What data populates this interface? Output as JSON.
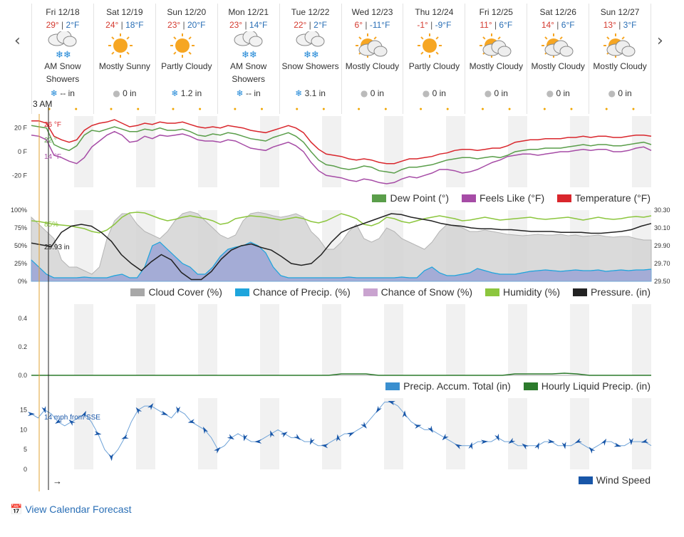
{
  "nav": {
    "prev": "‹",
    "next": "›"
  },
  "days": [
    {
      "name": "Fri 12/18",
      "hi": "29°",
      "lo": "2°F",
      "icon": "snow-cloud-icon",
      "cond": "AM Snow Showers",
      "ptype": "snow",
      "precip": "-- in"
    },
    {
      "name": "Sat 12/19",
      "hi": "24°",
      "lo": "18°F",
      "icon": "sun-icon",
      "cond": "Mostly Sunny",
      "ptype": "rain",
      "precip": "0 in"
    },
    {
      "name": "Sun 12/20",
      "hi": "23°",
      "lo": "20°F",
      "icon": "sun-icon",
      "cond": "Partly Cloudy",
      "ptype": "snow",
      "precip": "1.2 in"
    },
    {
      "name": "Mon 12/21",
      "hi": "23°",
      "lo": "14°F",
      "icon": "snow-cloud-icon",
      "cond": "AM Snow Showers",
      "ptype": "snow",
      "precip": "-- in"
    },
    {
      "name": "Tue 12/22",
      "hi": "22°",
      "lo": "2°F",
      "icon": "snow-cloud-icon",
      "cond": "Snow Showers",
      "ptype": "snow",
      "precip": "3.1 in"
    },
    {
      "name": "Wed 12/23",
      "hi": "6°",
      "lo": "-11°F",
      "icon": "partly-cloudy-icon",
      "cond": "Mostly Cloudy",
      "ptype": "rain",
      "precip": "0 in"
    },
    {
      "name": "Thu 12/24",
      "hi": "-1°",
      "lo": "-9°F",
      "icon": "sun-icon",
      "cond": "Partly Cloudy",
      "ptype": "rain",
      "precip": "0 in"
    },
    {
      "name": "Fri 12/25",
      "hi": "11°",
      "lo": "6°F",
      "icon": "partly-cloudy-icon",
      "cond": "Mostly Cloudy",
      "ptype": "rain",
      "precip": "0 in"
    },
    {
      "name": "Sat 12/26",
      "hi": "14°",
      "lo": "6°F",
      "icon": "partly-cloudy-icon",
      "cond": "Mostly Cloudy",
      "ptype": "rain",
      "precip": "0 in"
    },
    {
      "name": "Sun 12/27",
      "hi": "13°",
      "lo": "3°F",
      "icon": "partly-cloudy-icon",
      "cond": "Mostly Cloudy",
      "ptype": "rain",
      "precip": "0 in"
    }
  ],
  "cursor": {
    "time": "3 AM",
    "temp": "26 °F",
    "dew": "22 °",
    "feels": "14 °F",
    "humidity": "85%",
    "pressure": "29.93 in",
    "wind": "14 mph from SSE",
    "arrow": "→"
  },
  "colors": {
    "temperature": "#d9262c",
    "feels": "#a64ca6",
    "dew": "#5a9e4a",
    "cloud": "#a8a8a8",
    "precip": "#1ea5dc",
    "snow": "#9fa8d6",
    "humidity": "#8cc63e",
    "pressure": "#222222",
    "accum": "#3a8fcf",
    "hourly": "#2c7a2c",
    "wind": "#1856a8",
    "accent": "#2a6fb6"
  },
  "chart_data": [
    {
      "type": "line",
      "yticks": [
        "20 F",
        "0 F",
        "-20 F"
      ],
      "ylim": [
        -30,
        30
      ],
      "series": [
        {
          "name": "Dew Point (°)",
          "color_key": "dew",
          "values": [
            22,
            21,
            20,
            6,
            3,
            1,
            5,
            14,
            18,
            17,
            19,
            21,
            19,
            17,
            17,
            19,
            18,
            20,
            18,
            18,
            19,
            17,
            14,
            13,
            15,
            14,
            16,
            15,
            13,
            11,
            10,
            9,
            12,
            14,
            16,
            13,
            8,
            0,
            -7,
            -11,
            -12,
            -14,
            -15,
            -14,
            -12,
            -13,
            -16,
            -17,
            -18,
            -15,
            -13,
            -13,
            -12,
            -11,
            -9,
            -7,
            -6,
            -5,
            -5,
            -6,
            -5,
            -4,
            -5,
            -3,
            0,
            1,
            2,
            2,
            3,
            3,
            3,
            4,
            5,
            6,
            5,
            6,
            6,
            5,
            5,
            6,
            7,
            8,
            6
          ]
        },
        {
          "name": "Feels Like (°F)",
          "color_key": "feels",
          "values": [
            14,
            13,
            10,
            -3,
            -5,
            -8,
            -10,
            -5,
            4,
            9,
            14,
            17,
            14,
            8,
            9,
            13,
            11,
            14,
            13,
            14,
            15,
            13,
            10,
            9,
            9,
            8,
            10,
            9,
            6,
            3,
            2,
            1,
            4,
            6,
            8,
            5,
            0,
            -9,
            -16,
            -20,
            -21,
            -22,
            -24,
            -25,
            -23,
            -24,
            -26,
            -27,
            -26,
            -23,
            -21,
            -22,
            -20,
            -18,
            -15,
            -15,
            -16,
            -18,
            -17,
            -15,
            -12,
            -9,
            -7,
            -4,
            -3,
            -2,
            -2,
            -3,
            -2,
            -1,
            0,
            0,
            1,
            2,
            1,
            2,
            2,
            0,
            0,
            1,
            3,
            4,
            1
          ]
        },
        {
          "name": "Temperature (°F)",
          "color_key": "temperature",
          "values": [
            26,
            26,
            24,
            13,
            10,
            8,
            10,
            18,
            22,
            24,
            25,
            27,
            24,
            21,
            22,
            24,
            23,
            25,
            24,
            24,
            25,
            23,
            21,
            20,
            21,
            20,
            22,
            21,
            20,
            18,
            17,
            16,
            18,
            20,
            22,
            20,
            16,
            8,
            2,
            -2,
            -3,
            -4,
            -6,
            -7,
            -6,
            -7,
            -9,
            -10,
            -10,
            -8,
            -6,
            -6,
            -5,
            -4,
            -2,
            -1,
            1,
            2,
            2,
            1,
            2,
            3,
            3,
            5,
            8,
            9,
            10,
            10,
            11,
            11,
            11,
            12,
            12,
            13,
            12,
            13,
            13,
            12,
            12,
            13,
            14,
            14,
            13
          ]
        }
      ]
    },
    {
      "type": "area",
      "ylabels_left": [
        "100%",
        "75%",
        "50%",
        "25%",
        "0%"
      ],
      "ylabels_right": [
        "30.30",
        "30.10",
        "29.90",
        "29.70",
        "29.50"
      ],
      "ylim": [
        0,
        100
      ],
      "series": [
        {
          "name": "Cloud Cover (%)",
          "color_key": "cloud",
          "values": [
            90,
            80,
            70,
            60,
            30,
            20,
            20,
            15,
            10,
            20,
            60,
            85,
            95,
            95,
            80,
            70,
            65,
            60,
            70,
            85,
            95,
            98,
            95,
            85,
            75,
            65,
            60,
            65,
            85,
            95,
            97,
            95,
            92,
            90,
            92,
            95,
            90,
            70,
            60,
            45,
            45,
            55,
            70,
            80,
            60,
            55,
            60,
            75,
            70,
            60,
            55,
            50,
            45,
            55,
            70,
            80,
            78,
            75,
            70,
            70,
            72,
            70,
            68,
            66,
            65,
            64,
            65,
            66,
            65,
            65,
            66,
            64,
            65,
            63,
            64,
            65,
            63,
            62,
            63,
            63,
            60,
            58,
            58
          ]
        },
        {
          "name": "Chance of Precip. (%)",
          "color_key": "precip",
          "values": [
            30,
            20,
            10,
            5,
            5,
            5,
            5,
            6,
            5,
            5,
            5,
            8,
            10,
            5,
            5,
            20,
            50,
            55,
            45,
            35,
            25,
            20,
            10,
            10,
            20,
            35,
            45,
            48,
            50,
            55,
            50,
            40,
            20,
            8,
            5,
            5,
            5,
            5,
            5,
            5,
            5,
            5,
            6,
            5,
            5,
            5,
            5,
            5,
            5,
            6,
            5,
            5,
            15,
            20,
            12,
            8,
            8,
            10,
            12,
            18,
            15,
            12,
            10,
            10,
            10,
            12,
            14,
            15,
            16,
            15,
            14,
            15,
            16,
            15,
            15,
            16,
            14,
            15,
            16,
            15,
            16,
            16,
            17
          ]
        },
        {
          "name": "Chance of Snow (%)",
          "color_key": "snow",
          "values": [
            30,
            20,
            10,
            5,
            5,
            5,
            5,
            6,
            5,
            5,
            5,
            8,
            10,
            5,
            5,
            20,
            50,
            55,
            45,
            35,
            25,
            20,
            10,
            10,
            20,
            35,
            45,
            48,
            50,
            55,
            50,
            40,
            20,
            8,
            5,
            5,
            5,
            5,
            5,
            5,
            5,
            5,
            6,
            5,
            5,
            5,
            5,
            5,
            5,
            6,
            5,
            5,
            15,
            20,
            12,
            8,
            8,
            10,
            12,
            18,
            15,
            12,
            10,
            10,
            10,
            12,
            14,
            15,
            16,
            15,
            14,
            15,
            16,
            15,
            15,
            16,
            14,
            15,
            16,
            15,
            16,
            16,
            17
          ]
        },
        {
          "name": "Humidity (%)",
          "color_key": "humidity",
          "values": [
            85,
            84,
            82,
            80,
            79,
            78,
            76,
            74,
            70,
            68,
            72,
            80,
            90,
            96,
            97,
            96,
            92,
            88,
            85,
            87,
            90,
            92,
            90,
            88,
            85,
            80,
            82,
            88,
            90,
            92,
            91,
            90,
            88,
            86,
            88,
            90,
            88,
            84,
            82,
            85,
            90,
            95,
            92,
            88,
            80,
            78,
            82,
            90,
            88,
            84,
            82,
            85,
            88,
            90,
            92,
            90,
            88,
            85,
            86,
            88,
            90,
            88,
            86,
            87,
            88,
            89,
            90,
            88,
            87,
            88,
            89,
            90,
            88,
            86,
            88,
            90,
            88,
            87,
            88,
            90,
            91,
            90,
            92
          ]
        },
        {
          "name": "Pressure. (in)",
          "color_key": "pressure",
          "values": [
            29.93,
            29.91,
            29.89,
            30.05,
            30.12,
            30.14,
            30.12,
            30.05,
            29.95,
            29.8,
            29.7,
            29.62,
            29.72,
            29.8,
            29.74,
            29.6,
            29.52,
            29.52,
            29.61,
            29.75,
            29.85,
            29.9,
            29.92,
            29.88,
            29.85,
            29.78,
            29.7,
            29.68,
            29.7,
            29.8,
            29.94,
            30.05,
            30.1,
            30.14,
            30.18,
            30.22,
            30.26,
            30.25,
            30.22,
            30.2,
            30.18,
            30.15,
            30.13,
            30.12,
            30.1,
            30.09,
            30.09,
            30.08,
            30.08,
            30.07,
            30.06,
            30.06,
            30.06,
            30.05,
            30.05,
            30.05,
            30.04,
            30.04,
            30.05,
            30.06,
            30.08,
            30.12,
            30.15
          ]
        }
      ]
    },
    {
      "type": "area",
      "ylabels_left": [
        "0.4",
        "0.2",
        "0.0"
      ],
      "ylim": [
        0,
        0.5
      ],
      "series": [
        {
          "name": "Precip. Accum. Total (in)",
          "color_key": "accum",
          "values": [
            0,
            0,
            0,
            0,
            0,
            0,
            0,
            0,
            0,
            0,
            0,
            0,
            0,
            0,
            0,
            0,
            0,
            0,
            0,
            0,
            0,
            0,
            0,
            0,
            0,
            0,
            0,
            0,
            0,
            0,
            0,
            0,
            0,
            0,
            0,
            0,
            0,
            0,
            0,
            0,
            0,
            0,
            0,
            0,
            0,
            0,
            0,
            0,
            0,
            0,
            0
          ]
        },
        {
          "name": "Hourly Liquid Precip. (in)",
          "color_key": "hourly",
          "values": [
            0,
            0,
            0,
            0,
            0,
            0,
            0,
            0,
            0,
            0,
            0,
            0,
            0,
            0,
            0,
            0,
            0,
            0,
            0,
            0,
            0,
            0,
            0,
            0,
            0,
            0.01,
            0.01,
            0.01,
            0,
            0,
            0,
            0,
            0,
            0,
            0,
            0,
            0,
            0,
            0,
            0.01,
            0.01,
            0.01,
            0.01,
            0.015,
            0.01,
            0,
            0,
            0,
            0,
            0,
            0
          ]
        }
      ]
    },
    {
      "type": "line",
      "ylabels_left": [
        "15",
        "10",
        "5",
        "0"
      ],
      "ylim": [
        0,
        18
      ],
      "series": [
        {
          "name": "Wind Speed",
          "color_key": "wind",
          "values": [
            14,
            13,
            15,
            14,
            12,
            11,
            12,
            13,
            14,
            12,
            9,
            5,
            3,
            5,
            8,
            12,
            15,
            16,
            16,
            15,
            14,
            13,
            15,
            14,
            12,
            11,
            10,
            8,
            5,
            6,
            8,
            9,
            8,
            7,
            7,
            8,
            9,
            10,
            9,
            8,
            8,
            7,
            7,
            6,
            6,
            7,
            8,
            9,
            9,
            10,
            11,
            13,
            15,
            17,
            17,
            16,
            14,
            12,
            11,
            10,
            10,
            9,
            8,
            7,
            6,
            6,
            6,
            7,
            7,
            7,
            8,
            7,
            7,
            6,
            6,
            6,
            6,
            7,
            7,
            6,
            6,
            6,
            7,
            6,
            5,
            6,
            7,
            7,
            6,
            6,
            7,
            7,
            7,
            6
          ]
        }
      ]
    }
  ],
  "legends": {
    "temp": [
      "Dew Point (°)",
      "Feels Like (°F)",
      "Temperature (°F)"
    ],
    "mid": [
      "Cloud Cover (%)",
      "Chance of Precip. (%)",
      "Chance of Snow (%)",
      "Humidity (%)",
      "Pressure. (in)"
    ],
    "precip": [
      "Precip. Accum. Total (in)",
      "Hourly Liquid Precip. (in)"
    ],
    "wind": [
      "Wind Speed"
    ]
  },
  "footer": {
    "link": "View Calendar Forecast",
    "icon": "calendar-icon"
  }
}
